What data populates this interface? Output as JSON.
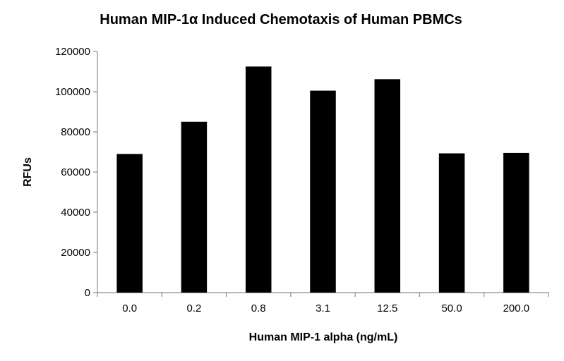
{
  "chart_data": {
    "type": "bar",
    "title": "Human MIP-1α Induced Chemotaxis of Human PBMCs",
    "xlabel": "Human MIP-1 alpha (ng/mL)",
    "ylabel": "RFUs",
    "categories": [
      "0.0",
      "0.2",
      "0.8",
      "3.1",
      "12.5",
      "50.0",
      "200.0"
    ],
    "values": [
      69000,
      85000,
      112500,
      100500,
      106200,
      69300,
      69500
    ],
    "ylim": [
      0,
      120000
    ],
    "yticks": [
      0,
      20000,
      40000,
      60000,
      80000,
      100000,
      120000
    ],
    "ytick_labels": [
      "0",
      "20000",
      "40000",
      "60000",
      "80000",
      "100000",
      "120000"
    ],
    "bar_color": "#000000",
    "grid": false,
    "legend": "none"
  }
}
